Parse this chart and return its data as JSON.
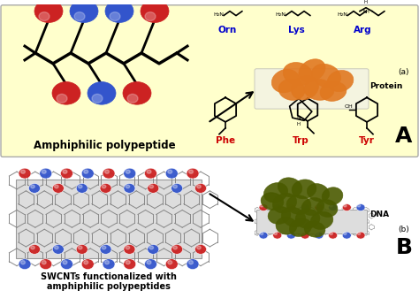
{
  "bg_color": "#ffffff",
  "panel_A_bg": "#ffffcc",
  "title_A": "A",
  "title_B": "B",
  "label_amphiphilic": "Amphiphilic polypeptide",
  "label_swcnt": "SWCNTs functionalized with\namphiphilic polypeptides",
  "label_protein": "Protein",
  "label_dna": "DNA",
  "label_a": "(a)",
  "label_b": "(b)",
  "amino_labels_top": [
    "Orn",
    "Lys",
    "Arg"
  ],
  "amino_labels_bot": [
    "Phe",
    "Trp",
    "Tyr"
  ],
  "amino_color_top": "#0000cc",
  "amino_color_bot": "#cc0000",
  "red_color": "#cc2222",
  "blue_color": "#3355cc",
  "orange_color": "#e07820",
  "dark_olive": "#4a5a00",
  "gray_color": "#aaaaaa",
  "top_spheres": [
    [
      55,
      310,
      "#cc2222"
    ],
    [
      95,
      310,
      "#3355cc"
    ],
    [
      135,
      310,
      "#3355cc"
    ],
    [
      175,
      310,
      "#cc2222"
    ]
  ],
  "bot_spheres": [
    [
      75,
      270,
      "#cc2222"
    ],
    [
      115,
      270,
      "#3355cc"
    ],
    [
      155,
      270,
      "#cc2222"
    ]
  ],
  "backbone_x": [
    40,
    60,
    80,
    100,
    120,
    140,
    160,
    180,
    200
  ],
  "backbone_y": [
    290,
    278,
    290,
    278,
    290,
    278,
    290,
    278,
    290
  ]
}
